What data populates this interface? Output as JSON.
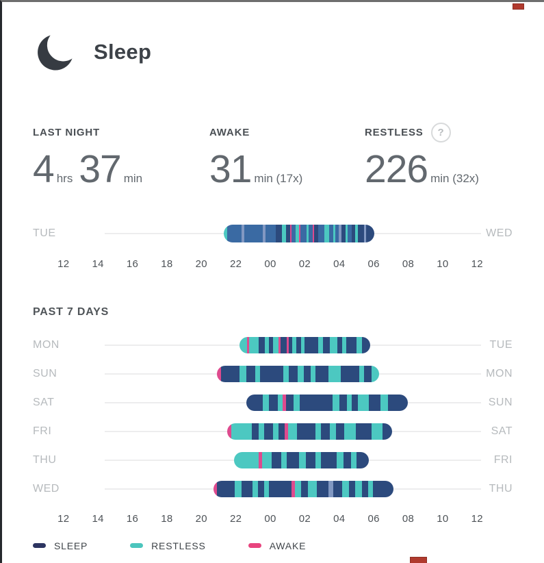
{
  "header": {
    "title": "Sleep"
  },
  "stats": {
    "last_night": {
      "label": "LAST NIGHT",
      "num1": "4",
      "unit1": "hrs",
      "num2": "37",
      "unit2": "min"
    },
    "awake": {
      "label": "AWAKE",
      "num": "31",
      "unit": "min (17x)"
    },
    "restless": {
      "label": "RESTLESS",
      "num": "226",
      "unit": "min (32x)",
      "help_glyph": "?"
    }
  },
  "colors": {
    "sleep_navy": "#2c4a7d",
    "sleep_blue": "#3a6aa3",
    "sleep_slate": "#8198c2",
    "restless_teal": "#4cc8c1",
    "awake_pink": "#de4a8e",
    "legend_sleep": "#2d3561",
    "legend_restless": "#4cc5bd",
    "legend_awake": "#e8447e"
  },
  "axis": {
    "ticks": [
      "12",
      "14",
      "16",
      "18",
      "20",
      "22",
      "00",
      "02",
      "04",
      "06",
      "08",
      "10",
      "12"
    ]
  },
  "last_night_chart": {
    "left_day": "TUE",
    "right_day": "WED",
    "bar": {
      "start": 21.3,
      "end": 30.05,
      "segments": [
        [
          "t",
          1.5
        ],
        [
          "b",
          7
        ],
        [
          "l",
          1.5
        ],
        [
          "b",
          9
        ],
        [
          "l",
          1.2
        ],
        [
          "b",
          5
        ],
        [
          "n",
          3
        ],
        [
          "t",
          2
        ],
        [
          "n",
          2
        ],
        [
          "p",
          0.7
        ],
        [
          "b",
          2
        ],
        [
          "t",
          1.5
        ],
        [
          "p",
          0.7
        ],
        [
          "b",
          3
        ],
        [
          "t",
          1
        ],
        [
          "b",
          2
        ],
        [
          "p",
          0.6
        ],
        [
          "n",
          2
        ],
        [
          "b",
          3
        ],
        [
          "t",
          2.5
        ],
        [
          "b",
          2
        ],
        [
          "t",
          1
        ],
        [
          "b",
          1.5
        ],
        [
          "l",
          1.3
        ],
        [
          "n",
          2
        ],
        [
          "t",
          1.2
        ],
        [
          "b",
          2
        ],
        [
          "n",
          1.5
        ],
        [
          "t",
          1.5
        ],
        [
          "n",
          3
        ],
        [
          "l",
          1
        ],
        [
          "n",
          4
        ]
      ]
    }
  },
  "section_past7_label": "PAST 7 DAYS",
  "week_chart": {
    "rows": [
      {
        "left_day": "MON",
        "right_day": "TUE",
        "bar": {
          "start": 22.2,
          "end": 29.8,
          "segments": [
            [
              "t",
              2
            ],
            [
              "p",
              0.5
            ],
            [
              "t",
              2.5
            ],
            [
              "n",
              1.5
            ],
            [
              "t",
              1
            ],
            [
              "n",
              1.2
            ],
            [
              "t",
              1.3
            ],
            [
              "p",
              0.5
            ],
            [
              "n",
              1.6
            ],
            [
              "p",
              0.5
            ],
            [
              "n",
              1
            ],
            [
              "t",
              1
            ],
            [
              "n",
              1.2
            ],
            [
              "t",
              0.8
            ],
            [
              "n",
              3.5
            ],
            [
              "t",
              1.3
            ],
            [
              "n",
              1.8
            ],
            [
              "t",
              1.8
            ],
            [
              "n",
              1.3
            ],
            [
              "t",
              1
            ],
            [
              "n",
              2.6
            ],
            [
              "t",
              1.4
            ],
            [
              "n",
              2.2
            ]
          ]
        }
      },
      {
        "left_day": "SUN",
        "right_day": "MON",
        "bar": {
          "start": 20.9,
          "end": 30.3,
          "segments": [
            [
              "p",
              0.8
            ],
            [
              "n",
              3.5
            ],
            [
              "t",
              1.3
            ],
            [
              "n",
              1.8
            ],
            [
              "t",
              0.8
            ],
            [
              "n",
              4.5
            ],
            [
              "t",
              1
            ],
            [
              "n",
              1.8
            ],
            [
              "t",
              1.1
            ],
            [
              "n",
              1.4
            ],
            [
              "t",
              0.8
            ],
            [
              "n",
              2.6
            ],
            [
              "t",
              2.3
            ],
            [
              "n",
              3.6
            ],
            [
              "t",
              0.9
            ],
            [
              "n",
              1.4
            ],
            [
              "t",
              1.4
            ]
          ]
        }
      },
      {
        "left_day": "SAT",
        "right_day": "SUN",
        "bar": {
          "start": 22.6,
          "end": 32.0,
          "segments": [
            [
              "n",
              2.6
            ],
            [
              "t",
              1
            ],
            [
              "n",
              1.4
            ],
            [
              "t",
              0.8
            ],
            [
              "p",
              0.5
            ],
            [
              "n",
              1.2
            ],
            [
              "t",
              1
            ],
            [
              "n",
              5.2
            ],
            [
              "t",
              1
            ],
            [
              "n",
              1.2
            ],
            [
              "t",
              0.8
            ],
            [
              "n",
              1
            ],
            [
              "t",
              1.7
            ],
            [
              "n",
              1.8
            ],
            [
              "t",
              1.2
            ],
            [
              "n",
              3.2
            ]
          ]
        }
      },
      {
        "left_day": "FRI",
        "right_day": "SAT",
        "bar": {
          "start": 21.5,
          "end": 31.05,
          "segments": [
            [
              "p",
              0.6
            ],
            [
              "t",
              3.2
            ],
            [
              "n",
              1
            ],
            [
              "t",
              0.8
            ],
            [
              "n",
              1.4
            ],
            [
              "t",
              0.8
            ],
            [
              "n",
              1
            ],
            [
              "p",
              0.5
            ],
            [
              "t",
              1.4
            ],
            [
              "n",
              2.8
            ],
            [
              "t",
              0.8
            ],
            [
              "n",
              1.4
            ],
            [
              "t",
              1
            ],
            [
              "n",
              1.2
            ],
            [
              "t",
              1.8
            ],
            [
              "n",
              2.4
            ],
            [
              "t",
              1.7
            ],
            [
              "n",
              1.4
            ]
          ]
        }
      },
      {
        "left_day": "THU",
        "right_day": "FRI",
        "bar": {
          "start": 21.9,
          "end": 29.7,
          "segments": [
            [
              "t",
              3.6
            ],
            [
              "p",
              0.5
            ],
            [
              "t",
              1.4
            ],
            [
              "n",
              1.4
            ],
            [
              "t",
              0.8
            ],
            [
              "n",
              1.8
            ],
            [
              "t",
              1
            ],
            [
              "n",
              1.4
            ],
            [
              "t",
              0.8
            ],
            [
              "n",
              2.3
            ],
            [
              "t",
              1
            ],
            [
              "n",
              1.1
            ],
            [
              "t",
              0.8
            ],
            [
              "n",
              1.8
            ]
          ]
        }
      },
      {
        "left_day": "WED",
        "right_day": "THU",
        "bar": {
          "start": 20.7,
          "end": 31.15,
          "segments": [
            [
              "p",
              0.6
            ],
            [
              "n",
              2.8
            ],
            [
              "t",
              1
            ],
            [
              "n",
              1.8
            ],
            [
              "t",
              0.8
            ],
            [
              "n",
              1
            ],
            [
              "t",
              0.7
            ],
            [
              "n",
              3.6
            ],
            [
              "p",
              0.5
            ],
            [
              "t",
              1
            ],
            [
              "n",
              1.1
            ],
            [
              "t",
              1.4
            ],
            [
              "n",
              1.8
            ],
            [
              "l",
              0.8
            ],
            [
              "n",
              1.4
            ],
            [
              "t",
              1.1
            ],
            [
              "n",
              1
            ],
            [
              "t",
              1
            ],
            [
              "n",
              1
            ],
            [
              "t",
              0.8
            ],
            [
              "n",
              3.2
            ]
          ]
        }
      }
    ]
  },
  "legend": {
    "items": [
      {
        "label": "SLEEP",
        "color_key": "legend_sleep"
      },
      {
        "label": "RESTLESS",
        "color_key": "legend_restless"
      },
      {
        "label": "AWAKE",
        "color_key": "legend_awake"
      }
    ]
  }
}
